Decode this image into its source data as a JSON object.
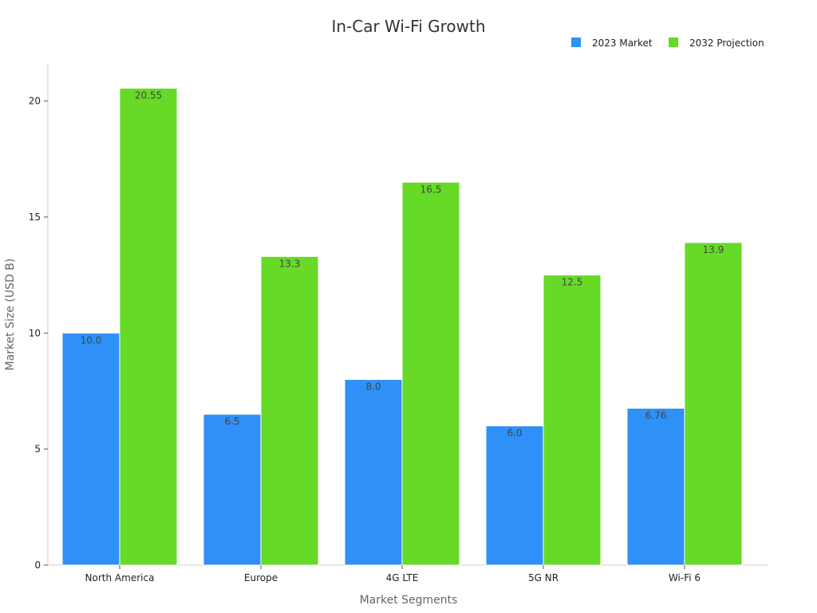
{
  "chart_data": {
    "type": "bar",
    "title": "In-Car Wi-Fi Growth",
    "xlabel": "Market Segments",
    "ylabel": "Market Size (USD B)",
    "categories": [
      "North America",
      "Europe",
      "4G LTE",
      "5G NR",
      "Wi-Fi 6"
    ],
    "series": [
      {
        "name": "2023 Market",
        "values": [
          10.0,
          6.5,
          8.0,
          6.0,
          6.76
        ],
        "labels": [
          "10.0",
          "6.5",
          "8.0",
          "6.0",
          "6.76"
        ],
        "color": "#2f91f7"
      },
      {
        "name": "2032 Projection",
        "values": [
          20.55,
          13.3,
          16.5,
          12.5,
          13.9
        ],
        "labels": [
          "20.55",
          "13.3",
          "16.5",
          "12.5",
          "13.9"
        ],
        "color": "#66da26"
      }
    ],
    "yticks": [
      0,
      5,
      10,
      15,
      20
    ],
    "ylim": [
      0,
      21.6
    ],
    "grid": false,
    "legend_position": "top-right"
  }
}
